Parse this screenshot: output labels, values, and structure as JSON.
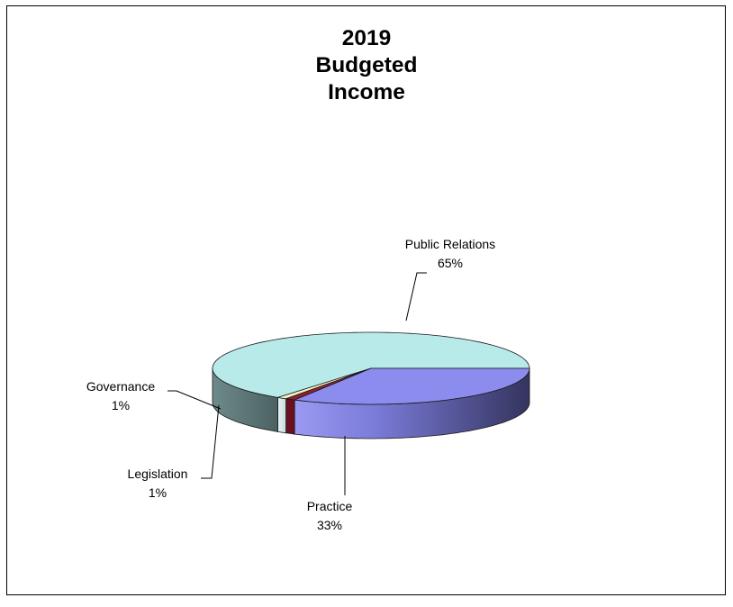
{
  "chart_data": {
    "type": "pie",
    "title": [
      "2019",
      "Budgeted",
      "Income"
    ],
    "legend": "none",
    "slices": [
      {
        "label": "Public Relations",
        "percent_label": "65%",
        "value": 65,
        "color": "#b9eaea"
      },
      {
        "label": "Practice",
        "percent_label": "33%",
        "value": 33,
        "color": "#8c8cee"
      },
      {
        "label": "Legislation",
        "percent_label": "1%",
        "value": 1,
        "color": "#902030"
      },
      {
        "label": "Governance",
        "percent_label": "1%",
        "value": 1,
        "color": "#f0f0c0"
      }
    ]
  }
}
